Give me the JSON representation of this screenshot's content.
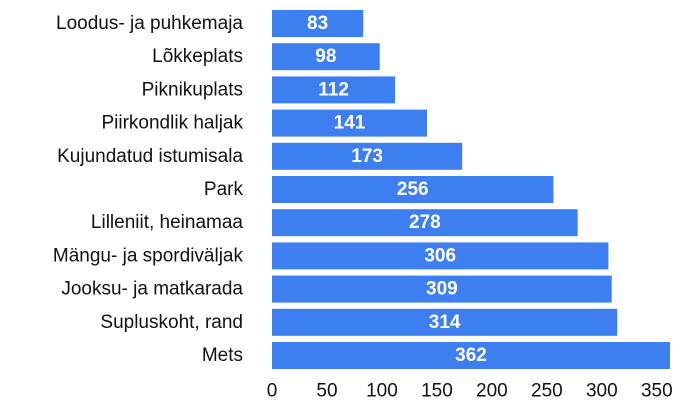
{
  "chart_data": {
    "type": "barh",
    "categories": [
      "Loodus- ja puhkemaja",
      "Lõkkeplats",
      "Piknikuplats",
      "Piirkondlik haljak",
      "Kujundatud istumisala",
      "Park",
      "Lilleniit, heinamaa",
      "Mängu- ja spordiväljak",
      "Jooksu- ja matkarada",
      "Supluskoht, rand",
      "Mets"
    ],
    "values": [
      83,
      98,
      112,
      141,
      173,
      256,
      278,
      306,
      309,
      314,
      362
    ],
    "color": "#3d7ff0",
    "xlim": [
      0,
      362
    ],
    "xticks": [
      0,
      50,
      100,
      150,
      200,
      250,
      300,
      350
    ],
    "grid": false
  }
}
